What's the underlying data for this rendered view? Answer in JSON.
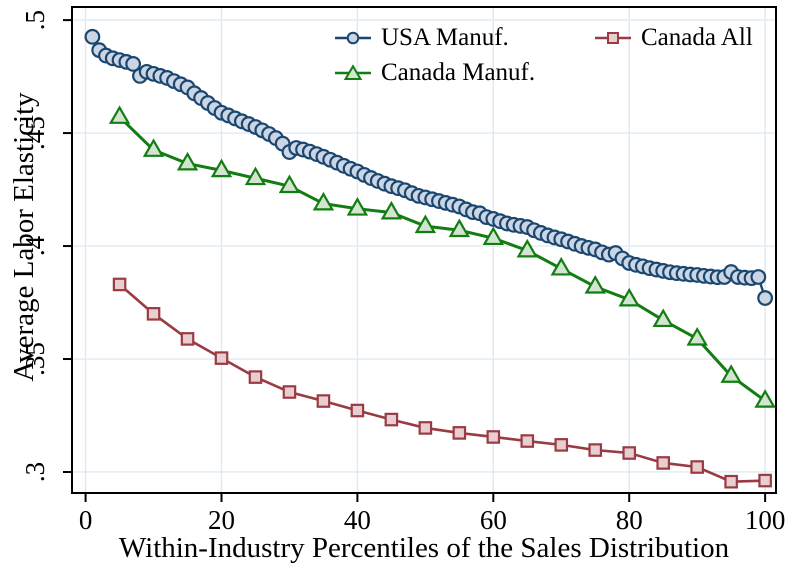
{
  "chart_data": {
    "type": "line",
    "title": "",
    "xlabel": "Within-Industry Percentiles of the Sales Distribution",
    "ylabel": "Average Labor Elasticity",
    "xlim": [
      -2,
      101.6
    ],
    "ylim": [
      0.2907,
      0.5058
    ],
    "grid": true,
    "legend_position": "top-inside-two-columns",
    "background_color": "#ffffff",
    "grid_color": "#dfe9f3",
    "axis_color": "#000000",
    "x_ticks": [
      {
        "v": 0,
        "label": "0"
      },
      {
        "v": 20,
        "label": "20"
      },
      {
        "v": 40,
        "label": "40"
      },
      {
        "v": 60,
        "label": "60"
      },
      {
        "v": 80,
        "label": "80"
      },
      {
        "v": 100,
        "label": "100"
      }
    ],
    "y_ticks": [
      {
        "v": 0.3,
        "label": ".3"
      },
      {
        "v": 0.35,
        "label": ".35"
      },
      {
        "v": 0.4,
        "label": ".4"
      },
      {
        "v": 0.45,
        "label": ".45"
      },
      {
        "v": 0.5,
        "label": ".5"
      }
    ],
    "series": [
      {
        "name": "USA Manuf.",
        "marker": "circle",
        "color": "#1a476f",
        "fill": "#ccd5e3",
        "line_width": 2.4,
        "x": [
          1,
          2,
          3,
          4,
          5,
          6,
          7,
          8,
          9,
          10,
          11,
          12,
          13,
          14,
          15,
          16,
          17,
          18,
          19,
          20,
          21,
          22,
          23,
          24,
          25,
          26,
          27,
          28,
          29,
          30,
          31,
          32,
          33,
          34,
          35,
          36,
          37,
          38,
          39,
          40,
          41,
          42,
          43,
          44,
          45,
          46,
          47,
          48,
          49,
          50,
          51,
          52,
          53,
          54,
          55,
          56,
          57,
          58,
          59,
          60,
          61,
          62,
          63,
          64,
          65,
          66,
          67,
          68,
          69,
          70,
          71,
          72,
          73,
          74,
          75,
          76,
          77,
          78,
          79,
          80,
          81,
          82,
          83,
          84,
          85,
          86,
          87,
          88,
          89,
          90,
          91,
          92,
          93,
          94,
          95,
          96,
          97,
          98,
          99,
          100
        ],
        "y": [
          0.4926,
          0.4867,
          0.4843,
          0.4831,
          0.4823,
          0.4815,
          0.4806,
          0.4753,
          0.4771,
          0.4762,
          0.4753,
          0.4744,
          0.473,
          0.4716,
          0.4702,
          0.4676,
          0.4655,
          0.4633,
          0.4611,
          0.459,
          0.4578,
          0.4565,
          0.4552,
          0.454,
          0.4527,
          0.4512,
          0.4496,
          0.4478,
          0.4453,
          0.4416,
          0.4434,
          0.4427,
          0.4418,
          0.4407,
          0.4395,
          0.4382,
          0.4369,
          0.4355,
          0.4342,
          0.433,
          0.4315,
          0.4301,
          0.4288,
          0.4276,
          0.4265,
          0.4256,
          0.4247,
          0.4234,
          0.4222,
          0.4215,
          0.4207,
          0.4199,
          0.4191,
          0.4183,
          0.4175,
          0.4162,
          0.415,
          0.4145,
          0.4128,
          0.412,
          0.411,
          0.41,
          0.4094,
          0.4089,
          0.4084,
          0.407,
          0.4058,
          0.4047,
          0.4038,
          0.403,
          0.402,
          0.401,
          0.4,
          0.3992,
          0.3985,
          0.3972,
          0.3962,
          0.3969,
          0.3945,
          0.3925,
          0.3917,
          0.391,
          0.3902,
          0.3896,
          0.389,
          0.3884,
          0.388,
          0.3877,
          0.3874,
          0.3872,
          0.3868,
          0.3865,
          0.3862,
          0.3863,
          0.3885,
          0.3863,
          0.386,
          0.3858,
          0.3863,
          0.377
        ]
      },
      {
        "name": "Canada Manuf.",
        "marker": "triangle",
        "color": "#127d12",
        "fill": "#d3e5d0",
        "line_width": 3.0,
        "x": [
          5,
          10,
          15,
          20,
          25,
          30,
          35,
          40,
          45,
          50,
          55,
          60,
          65,
          70,
          75,
          80,
          85,
          90,
          95,
          100
        ],
        "y": [
          0.4571,
          0.4425,
          0.4365,
          0.4335,
          0.43,
          0.4265,
          0.4188,
          0.4165,
          0.4148,
          0.4088,
          0.407,
          0.4035,
          0.398,
          0.39,
          0.382,
          0.3763,
          0.3672,
          0.359,
          0.3425,
          0.3315
        ]
      },
      {
        "name": "Canada All",
        "marker": "square",
        "color": "#9a3b43",
        "fill": "#e9ced1",
        "line_width": 2.6,
        "x": [
          5,
          10,
          15,
          20,
          25,
          30,
          35,
          40,
          45,
          50,
          55,
          60,
          65,
          70,
          75,
          80,
          85,
          90,
          95,
          100
        ],
        "y": [
          0.383,
          0.37,
          0.3589,
          0.3504,
          0.342,
          0.3354,
          0.3314,
          0.3272,
          0.3232,
          0.3195,
          0.3173,
          0.3155,
          0.3137,
          0.312,
          0.3097,
          0.3084,
          0.304,
          0.3022,
          0.2957,
          0.2962
        ]
      }
    ],
    "legend": {
      "items": [
        {
          "label": "USA Manuf.",
          "series": 0
        },
        {
          "label": "Canada All",
          "series": 2
        },
        {
          "label": "Canada Manuf.",
          "series": 1
        }
      ]
    }
  }
}
